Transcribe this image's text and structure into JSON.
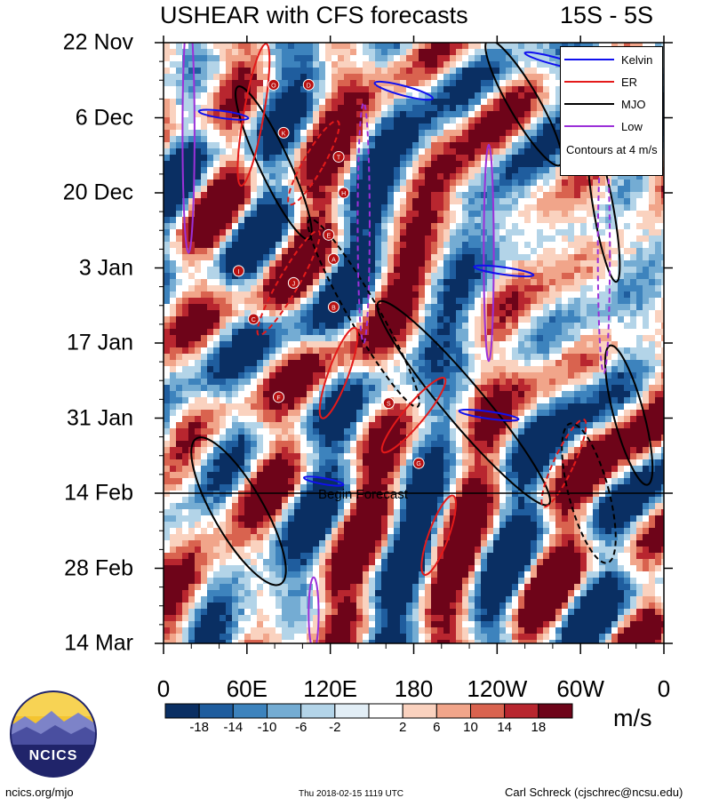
{
  "header": {
    "title": "USHEAR with CFS forecasts",
    "region": "15S - 5S"
  },
  "chart_data": {
    "type": "heatmap",
    "title": "USHEAR with CFS forecasts",
    "subtitle": "15S - 5S",
    "y_axis_dates": [
      "22 Nov",
      "6 Dec",
      "20 Dec",
      "3 Jan",
      "17 Jan",
      "31 Jan",
      "14 Feb",
      "28 Feb",
      "14 Mar"
    ],
    "x_axis_longitudes": [
      "0",
      "60E",
      "120E",
      "180",
      "120W",
      "60W",
      "0"
    ],
    "x_range_degrees": [
      0,
      360
    ],
    "forecast_start": "14 Feb",
    "forecast_label": "Begin Forecast",
    "units": "m/s",
    "colorbar": {
      "levels": [
        -18,
        -14,
        -10,
        -6,
        -2,
        2,
        6,
        10,
        14,
        18
      ],
      "colors": [
        "#0a2f63",
        "#1f5d9e",
        "#3d83bd",
        "#74acd3",
        "#b3d4e8",
        "#e2eef6",
        "#ffffff",
        "#fad2bf",
        "#f1a58a",
        "#d9634f",
        "#b8262f",
        "#6e0419"
      ]
    },
    "legend": [
      {
        "label": "Kelvin",
        "color": "#1010ee",
        "style": "solid"
      },
      {
        "label": "ER",
        "color": "#e41a1a",
        "style": "solid"
      },
      {
        "label": "MJO",
        "color": "#000000",
        "style": "solid"
      },
      {
        "label": "Low",
        "color": "#9b30d8",
        "style": "solid"
      }
    ],
    "contour_note": "Contours at 4 m/s",
    "storm_markers": [
      "O",
      "D",
      "K",
      "T",
      "H",
      "E",
      "A",
      "I",
      "J",
      "B",
      "C",
      "F",
      "S",
      "G"
    ]
  },
  "footer": {
    "url": "ncics.org/mjo",
    "timestamp": "Thu 2018-02-15 1119 UTC",
    "author": "Carl Schreck (cjschrec@ncsu.edu)",
    "logo_text": "NCICS"
  }
}
